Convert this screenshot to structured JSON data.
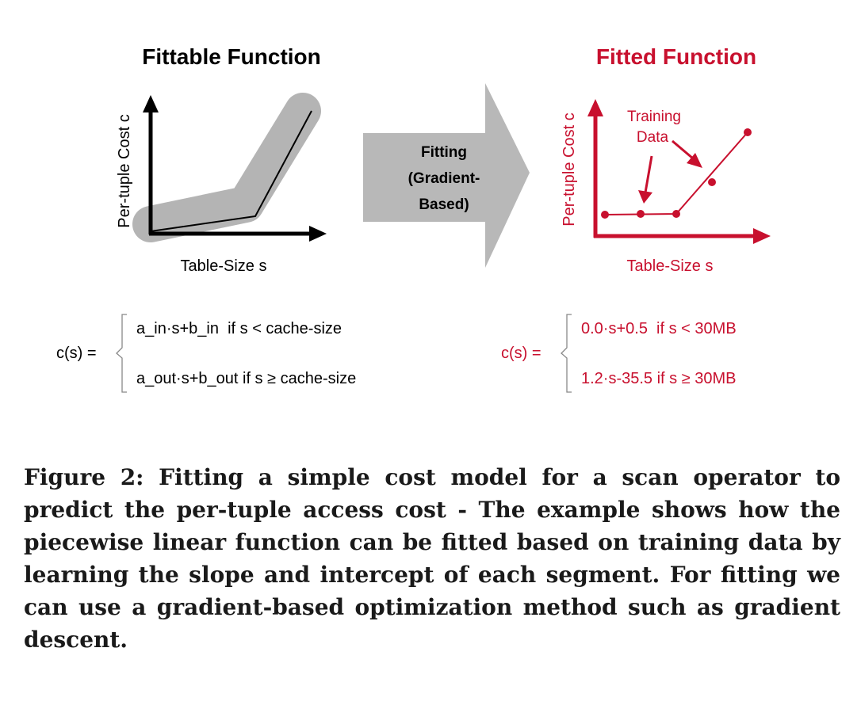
{
  "colors": {
    "accent_red": "#c8102e",
    "gray": "#b4b4b4",
    "arrow_gray": "#b8b8b8",
    "black": "#000000"
  },
  "left_panel": {
    "title": "Fittable Function",
    "y_label": "Per-tuple Cost c",
    "x_label": "Table-Size s"
  },
  "arrow": {
    "line1": "Fitting",
    "line2": "(Gradient-",
    "line3": "Based)"
  },
  "right_panel": {
    "title": "Fitted Function",
    "y_label": "Per-tuple Cost c",
    "x_label": "Table-Size s",
    "annotation_line1": "Training",
    "annotation_line2": "Data"
  },
  "left_formula": {
    "lhs": "c(s) =",
    "case1": "a_in·s+b_in  if s < cache-size",
    "case2": "a_out·s+b_out if s ≥ cache-size"
  },
  "right_formula": {
    "lhs": "c(s) =",
    "case1": "0.0·s+0.5  if s < 30MB",
    "case2": "1.2·s-35.5 if s ≥ 30MB"
  },
  "caption": "Figure 2: Fitting a simple cost model for a scan operator to predict the per-tuple access cost - The example shows how the piecewise linear function can be fitted based on training data by learning the slope and intercept of each segment. For fitting we can use a gradient-based optimization method such as gradient descent."
}
